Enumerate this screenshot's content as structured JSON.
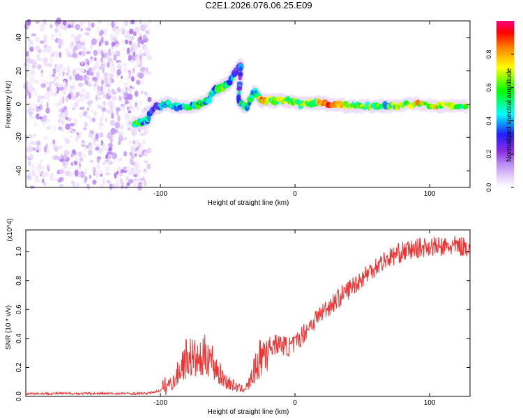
{
  "title": "C2E1.2026.076.06.25.E09",
  "chart_data": [
    {
      "type": "heatmap",
      "xlabel": "Height of straight line (km)",
      "ylabel": "Frequency (Hz)",
      "xlim": [
        -200,
        130
      ],
      "ylim": [
        -50,
        50
      ],
      "xticks": [
        -100,
        0,
        100
      ],
      "yticks": [
        -40,
        -20,
        0,
        20,
        40
      ],
      "colorbar": {
        "label": "Normalized spectral amplitude",
        "range": [
          0,
          1
        ],
        "ticks": [
          "0.0",
          "0.2",
          "0.4",
          "0.6",
          "0.8"
        ],
        "colormap": [
          "#ffffff",
          "#e6d2fa",
          "#b98cf5",
          "#8a2be2",
          "#2020ff",
          "#00ffff",
          "#00ff00",
          "#ffff00",
          "#ff8000",
          "#ff0000",
          "#ff0080"
        ]
      },
      "noise_region_x": [
        -200,
        -108
      ],
      "trace": [
        {
          "x": -120,
          "f": -12,
          "a": 0.55
        },
        {
          "x": -110,
          "f": -10,
          "a": 0.45
        },
        {
          "x": -105,
          "f": -2,
          "a": 0.4
        },
        {
          "x": -95,
          "f": 0,
          "a": 0.5
        },
        {
          "x": -85,
          "f": -2,
          "a": 0.45
        },
        {
          "x": -75,
          "f": -1,
          "a": 0.5
        },
        {
          "x": -65,
          "f": 2,
          "a": 0.5
        },
        {
          "x": -60,
          "f": 8,
          "a": 0.45
        },
        {
          "x": -55,
          "f": 10,
          "a": 0.55
        },
        {
          "x": -50,
          "f": 12,
          "a": 0.5
        },
        {
          "x": -45,
          "f": 18,
          "a": 0.4
        },
        {
          "x": -40,
          "f": 24,
          "a": 0.35
        },
        {
          "x": -42,
          "f": 2,
          "a": 0.45
        },
        {
          "x": -36,
          "f": -2,
          "a": 0.55
        },
        {
          "x": -30,
          "f": 8,
          "a": 0.45
        },
        {
          "x": -25,
          "f": 2,
          "a": 0.75
        },
        {
          "x": -15,
          "f": 2,
          "a": 0.6
        },
        {
          "x": -5,
          "f": 2,
          "a": 0.65
        },
        {
          "x": 5,
          "f": 0,
          "a": 0.6
        },
        {
          "x": 15,
          "f": 1,
          "a": 0.6
        },
        {
          "x": 25,
          "f": 0,
          "a": 0.85
        },
        {
          "x": 40,
          "f": -1,
          "a": 0.65
        },
        {
          "x": 55,
          "f": -1,
          "a": 0.6
        },
        {
          "x": 70,
          "f": -1,
          "a": 0.55
        },
        {
          "x": 90,
          "f": 0,
          "a": 0.75
        },
        {
          "x": 110,
          "f": -1,
          "a": 0.6
        },
        {
          "x": 128,
          "f": -1,
          "a": 0.6
        }
      ]
    },
    {
      "type": "line",
      "xlabel": "Height of straight line (km)",
      "ylabel": "SNR (10 * v/v)",
      "yscale_label": "(x10^4)",
      "xlim": [
        -200,
        130
      ],
      "ylim": [
        0,
        1.15
      ],
      "xticks": [
        -100,
        0,
        100
      ],
      "yticks": [
        "0.0",
        "0.2",
        "0.4",
        "0.6",
        "0.8",
        "1.0"
      ],
      "series": [
        {
          "name": "SNR",
          "color": "#ee3333",
          "x": [
            -200,
            -150,
            -110,
            -100,
            -95,
            -90,
            -85,
            -80,
            -75,
            -70,
            -65,
            -60,
            -55,
            -50,
            -45,
            -40,
            -35,
            -30,
            -25,
            -20,
            -15,
            -10,
            -5,
            0,
            5,
            10,
            20,
            30,
            40,
            50,
            60,
            70,
            80,
            90,
            100,
            110,
            120,
            130
          ],
          "y": [
            0.02,
            0.02,
            0.02,
            0.04,
            0.08,
            0.1,
            0.2,
            0.28,
            0.26,
            0.24,
            0.3,
            0.22,
            0.14,
            0.1,
            0.07,
            0.05,
            0.07,
            0.18,
            0.28,
            0.34,
            0.36,
            0.36,
            0.34,
            0.36,
            0.42,
            0.48,
            0.58,
            0.66,
            0.74,
            0.82,
            0.9,
            0.96,
            1.0,
            1.02,
            1.04,
            1.03,
            1.04,
            1.03
          ]
        }
      ]
    }
  ]
}
